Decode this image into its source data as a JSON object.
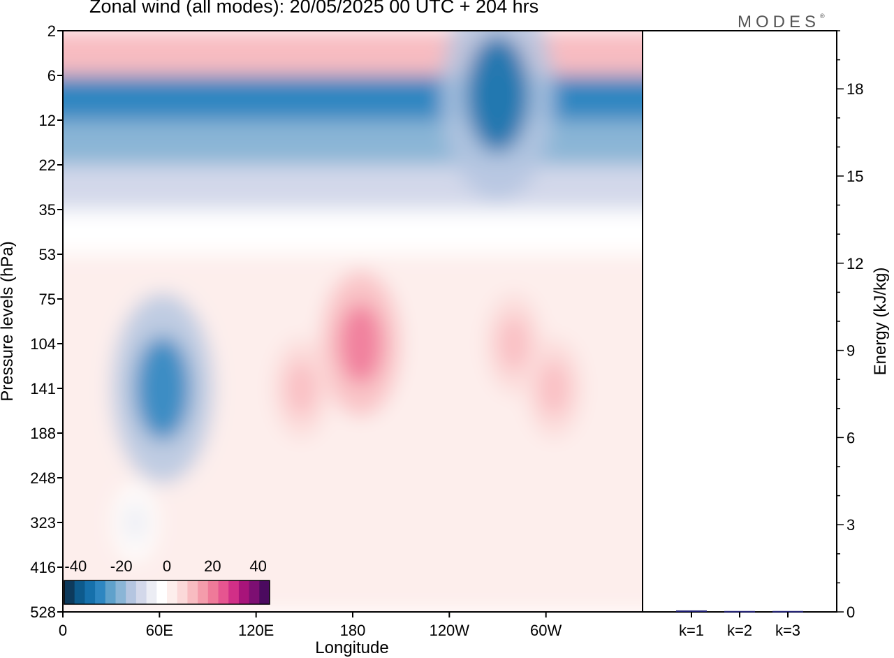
{
  "title": "Zonal wind (all modes):  20/05/2025  00 UTC  + 204 hrs",
  "logo": {
    "text": "MODES",
    "mark": "®"
  },
  "chart_data": [
    {
      "type": "heatmap",
      "title": "Zonal wind (all modes):  20/05/2025  00 UTC  + 204 hrs",
      "xlabel": "Longitude",
      "ylabel": "Pressure levels (hPa)",
      "x_ticks": [
        "0",
        "60E",
        "120E",
        "180",
        "120W",
        "60W"
      ],
      "x_tick_values": [
        0,
        60,
        120,
        180,
        240,
        300
      ],
      "xlim": [
        0,
        360
      ],
      "y_ticks": [
        "2",
        "6",
        "12",
        "22",
        "35",
        "53",
        "75",
        "104",
        "141",
        "188",
        "248",
        "323",
        "416",
        "528"
      ],
      "y_scale": "pressure levels (top to bottom)",
      "colorbar": {
        "tick_labels": [
          "-40",
          "-20",
          "0",
          "20",
          "40"
        ],
        "range": [
          -45,
          45
        ],
        "colors": [
          "#0d3a5c",
          "#0d5a8c",
          "#1670ab",
          "#2e86c1",
          "#5fa1cb",
          "#8ab5d6",
          "#b4c5e0",
          "#d3d8ea",
          "#ecedf4",
          "#ffffff",
          "#fdeeec",
          "#fbd9d9",
          "#f8bcc1",
          "#f49cab",
          "#ef7a99",
          "#e65590",
          "#d12f87",
          "#a8147a",
          "#7d0f72",
          "#4b0a5f"
        ]
      },
      "bands": [
        {
          "levels": [
            "2",
            "6"
          ],
          "value": 12
        },
        {
          "levels": [
            "6",
            "12"
          ],
          "value": -30
        },
        {
          "levels": [
            "12",
            "22"
          ],
          "value": -22
        },
        {
          "levels": [
            "22",
            "35"
          ],
          "value": -12
        },
        {
          "levels": [
            "35",
            "53"
          ],
          "value": -2
        },
        {
          "levels": [
            "53",
            "528"
          ],
          "value": 4
        }
      ],
      "features": [
        {
          "center_lon": 62,
          "center_level": "141",
          "value": -30
        },
        {
          "center_lon": 185,
          "center_level": "104",
          "value": 20
        },
        {
          "center_lon": 148,
          "center_level": "141",
          "value": 10
        },
        {
          "center_lon": 305,
          "center_level": "141",
          "value": 10
        },
        {
          "center_lon": 280,
          "center_level": "104",
          "value": 10
        },
        {
          "center_lon": 270,
          "center_level": "8",
          "value": -35
        },
        {
          "center_lon": 45,
          "center_level": "323",
          "value": -5
        }
      ],
      "grid": false
    },
    {
      "type": "bar",
      "categories": [
        "k=1",
        "k=2",
        "k=3"
      ],
      "values": [
        0.05,
        0.03,
        0.03
      ],
      "ylabel": "Energy (kJ/kg)",
      "ylim": [
        0,
        20
      ],
      "y_ticks": [
        0,
        3,
        6,
        9,
        12,
        15,
        18
      ],
      "bar_color": "#1a1a6e"
    }
  ]
}
